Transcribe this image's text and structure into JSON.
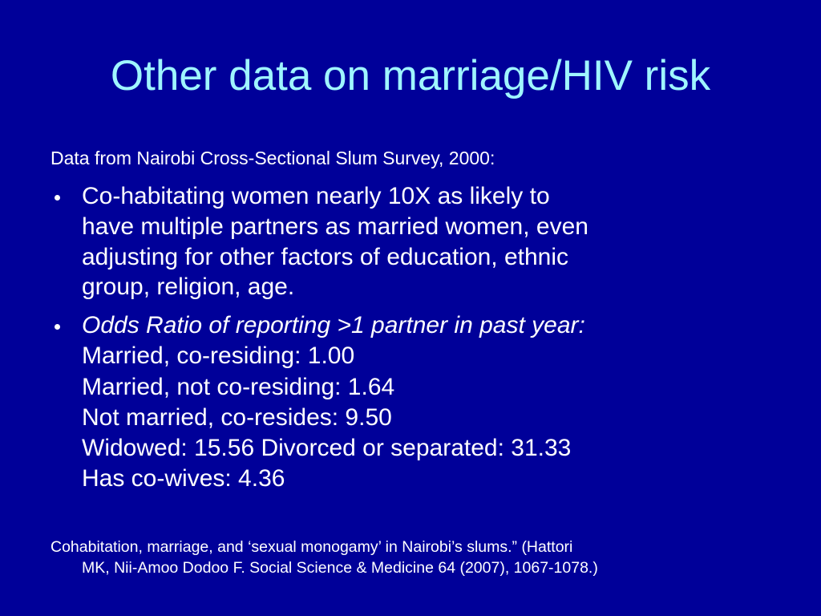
{
  "title": "Other data on marriage/HIV risk",
  "intro": "Data from Nairobi Cross-Sectional Slum Survey, 2000:",
  "bullets": [
    {
      "lines": [
        "Co-habitating women nearly 10X as likely to",
        "have multiple partners as married women, even",
        "adjusting for other factors of education, ethnic",
        "group, religion, age."
      ]
    },
    {
      "heading": "Odds Ratio of reporting >1 partner in past year:",
      "lines": [
        "Married, co-residing: 1.00",
        "Married, not co-residing: 1.64",
        "Not married, co-resides: 9.50",
        "Widowed: 15.56 Divorced or separated: 31.33",
        "Has co-wives: 4.36"
      ]
    }
  ],
  "citation": {
    "lines": [
      "Cohabitation, marriage, and ‘sexual monogamy’ in Nairobi’s slums.” (Hattori",
      "MK, Nii-Amoo Dodoo F. Social Science & Medicine 64 (2007), 1067-1078.)"
    ]
  }
}
